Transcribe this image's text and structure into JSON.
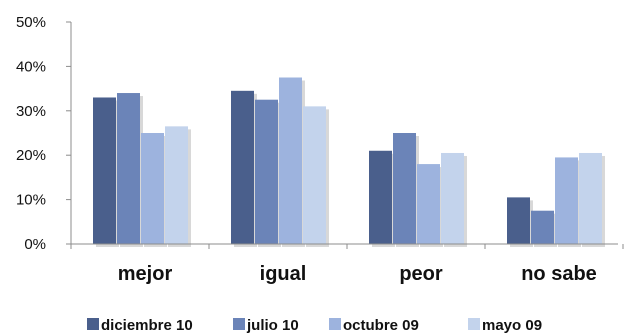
{
  "chart_data": {
    "type": "bar",
    "categories": [
      "mejor",
      "igual",
      "peor",
      "no sabe"
    ],
    "series": [
      {
        "name": "diciembre 10",
        "values": [
          33,
          34.5,
          21,
          10.5
        ],
        "color": "#4a5f8c"
      },
      {
        "name": "julio 10",
        "values": [
          34,
          32.5,
          25,
          7.5
        ],
        "color": "#6b84b8"
      },
      {
        "name": "octubre 09",
        "values": [
          25,
          37.5,
          18,
          19.5
        ],
        "color": "#9db3de"
      },
      {
        "name": "mayo 09",
        "values": [
          26.5,
          31,
          20.5,
          20.5
        ],
        "color": "#c3d3ec"
      }
    ],
    "ylim": [
      0,
      50
    ],
    "yticks": [
      0,
      10,
      20,
      30,
      40,
      50
    ],
    "ytick_labels": [
      "0%",
      "10%",
      "20%",
      "30%",
      "40%",
      "50%"
    ],
    "grid": false,
    "legend_position": "bottom",
    "title": "",
    "xlabel": "",
    "ylabel": ""
  }
}
